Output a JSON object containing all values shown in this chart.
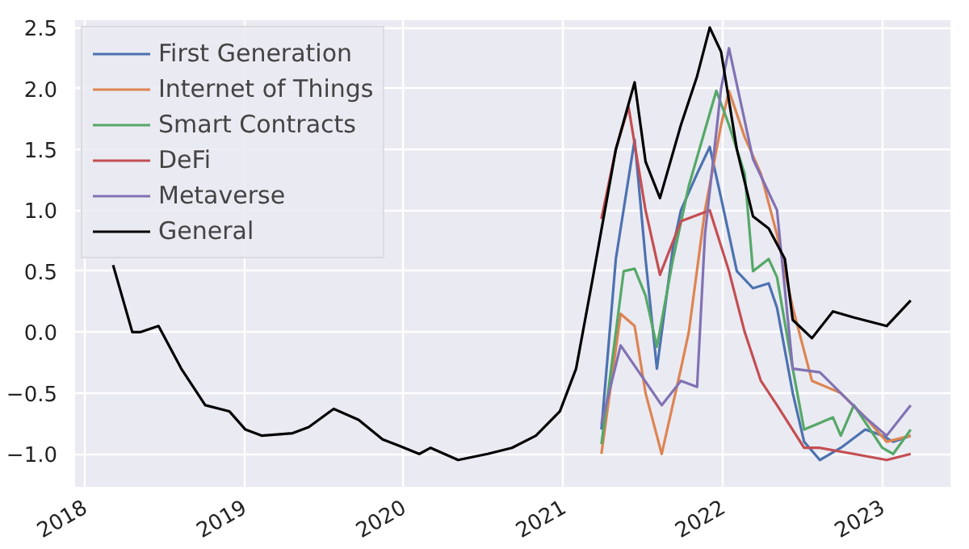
{
  "chart_data": {
    "type": "line",
    "xlim": [
      "2017-12-10",
      "2023-06-06"
    ],
    "ylim": [
      -1.27,
      2.56
    ],
    "xticks": [
      {
        "value": "2018",
        "label": "2018"
      },
      {
        "value": "2019",
        "label": "2019"
      },
      {
        "value": "2020",
        "label": "2020"
      },
      {
        "value": "2021",
        "label": "2021"
      },
      {
        "value": "2022",
        "label": "2022"
      },
      {
        "value": "2023",
        "label": "2023"
      }
    ],
    "yticks": [
      {
        "value": -1.0,
        "label": "−1.0"
      },
      {
        "value": -0.5,
        "label": "−0.5"
      },
      {
        "value": 0.0,
        "label": "0.0"
      },
      {
        "value": 0.5,
        "label": "0.5"
      },
      {
        "value": 1.0,
        "label": "1.0"
      },
      {
        "value": 1.5,
        "label": "1.5"
      },
      {
        "value": 2.0,
        "label": "2.0"
      },
      {
        "value": 2.5,
        "label": "2.5"
      }
    ],
    "grid": true,
    "legend": "top left",
    "marker": "none",
    "line_style": "solid",
    "series": [
      {
        "name": "First Generation",
        "color": "#4c72b0",
        "x": [
          "2021-03-29",
          "2021-05-01",
          "2021-06-13",
          "2021-07-08",
          "2021-08-03",
          "2021-09-09",
          "2021-09-27",
          "2021-11-03",
          "2021-12-02",
          "2021-12-28",
          "2022-02-02",
          "2022-03-11",
          "2022-04-16",
          "2022-05-05",
          "2022-06-10",
          "2022-07-06",
          "2022-08-11",
          "2022-09-28",
          "2022-11-23",
          "2023-01-01",
          "2023-01-26",
          "2023-03-07"
        ],
        "values": [
          -0.8,
          0.6,
          1.58,
          0.6,
          -0.3,
          0.7,
          1.0,
          1.3,
          1.52,
          1.1,
          0.5,
          0.36,
          0.4,
          0.2,
          -0.5,
          -0.9,
          -1.05,
          -0.95,
          -0.8,
          -0.85,
          -0.9,
          -0.85
        ]
      },
      {
        "name": "Internet of Things",
        "color": "#dd8452",
        "x": [
          "2021-03-29",
          "2021-05-12",
          "2021-06-13",
          "2021-07-08",
          "2021-08-14",
          "2021-09-27",
          "2021-10-15",
          "2021-11-21",
          "2021-12-28",
          "2022-01-15",
          "2022-02-20",
          "2022-03-29",
          "2022-05-05",
          "2022-06-10",
          "2022-07-24",
          "2022-09-28",
          "2022-11-23",
          "2023-01-11",
          "2023-03-07"
        ],
        "values": [
          -1.0,
          0.15,
          0.05,
          -0.5,
          -1.0,
          -0.3,
          0.0,
          1.0,
          1.7,
          1.98,
          1.6,
          1.3,
          0.8,
          0.2,
          -0.4,
          -0.5,
          -0.7,
          -0.9,
          -0.85
        ]
      },
      {
        "name": "Smart Contracts",
        "color": "#55a868",
        "x": [
          "2021-03-29",
          "2021-05-19",
          "2021-06-13",
          "2021-07-08",
          "2021-08-03",
          "2021-09-09",
          "2021-10-15",
          "2021-12-17",
          "2022-01-15",
          "2022-02-20",
          "2022-03-11",
          "2022-04-16",
          "2022-05-05",
          "2022-06-10",
          "2022-07-06",
          "2022-09-10",
          "2022-09-28",
          "2022-10-28",
          "2023-01-01",
          "2023-01-26",
          "2023-03-07"
        ],
        "values": [
          -0.92,
          0.5,
          0.52,
          0.3,
          -0.12,
          0.6,
          1.2,
          1.98,
          1.7,
          1.3,
          0.5,
          0.6,
          0.45,
          -0.3,
          -0.8,
          -0.7,
          -0.85,
          -0.6,
          -0.95,
          -1.0,
          -0.8
        ]
      },
      {
        "name": "DeFi",
        "color": "#c44e52",
        "x": [
          "2021-03-29",
          "2021-05-01",
          "2021-05-30",
          "2021-07-08",
          "2021-08-10",
          "2021-09-27",
          "2021-12-02",
          "2022-01-15",
          "2022-02-20",
          "2022-03-29",
          "2022-05-05",
          "2022-07-06",
          "2022-08-11",
          "2022-10-28",
          "2023-01-11",
          "2023-03-07"
        ],
        "values": [
          0.93,
          1.5,
          1.85,
          1.0,
          0.47,
          0.91,
          1.0,
          0.5,
          0.0,
          -0.4,
          -0.6,
          -0.95,
          -0.95,
          -1.0,
          -1.05,
          -1.0
        ]
      },
      {
        "name": "Metaverse",
        "color": "#8172b3",
        "x": [
          "2021-03-29",
          "2021-05-12",
          "2021-08-14",
          "2021-09-27",
          "2021-11-03",
          "2021-11-21",
          "2021-12-28",
          "2022-01-15",
          "2022-03-11",
          "2022-05-05",
          "2022-06-10",
          "2022-08-11",
          "2022-09-28",
          "2022-11-23",
          "2023-01-11",
          "2023-03-07"
        ],
        "values": [
          -0.75,
          -0.11,
          -0.6,
          -0.4,
          -0.45,
          0.8,
          2.0,
          2.33,
          1.42,
          1.0,
          -0.3,
          -0.33,
          -0.5,
          -0.7,
          -0.85,
          -0.6
        ]
      },
      {
        "name": "General",
        "color": "#000000",
        "x": [
          "2018-03-07",
          "2018-04-20",
          "2018-05-09",
          "2018-06-19",
          "2018-08-10",
          "2018-10-04",
          "2018-11-28",
          "2019-01-04",
          "2019-02-10",
          "2019-04-22",
          "2019-05-29",
          "2019-07-25",
          "2019-09-20",
          "2019-11-14",
          "2019-12-20",
          "2020-02-06",
          "2020-03-03",
          "2020-05-05",
          "2020-07-11",
          "2020-09-05",
          "2020-10-30",
          "2020-12-24",
          "2021-01-30",
          "2021-03-07",
          "2021-05-01",
          "2021-06-13",
          "2021-07-08",
          "2021-08-10",
          "2021-09-27",
          "2021-11-03",
          "2021-12-02",
          "2021-12-28",
          "2022-02-02",
          "2022-03-11",
          "2022-04-16",
          "2022-05-23",
          "2022-06-10",
          "2022-07-24",
          "2022-09-10",
          "2022-10-28",
          "2023-01-11",
          "2023-03-07"
        ],
        "values": [
          0.55,
          0.0,
          0.0,
          0.05,
          -0.3,
          -0.6,
          -0.65,
          -0.8,
          -0.85,
          -0.83,
          -0.78,
          -0.63,
          -0.72,
          -0.88,
          -0.93,
          -1.0,
          -0.95,
          -1.05,
          -1.0,
          -0.95,
          -0.85,
          -0.65,
          -0.3,
          0.4,
          1.5,
          2.05,
          1.4,
          1.1,
          1.7,
          2.1,
          2.5,
          2.3,
          1.5,
          0.95,
          0.85,
          0.6,
          0.1,
          -0.05,
          0.17,
          0.12,
          0.05,
          0.26
        ]
      }
    ]
  }
}
